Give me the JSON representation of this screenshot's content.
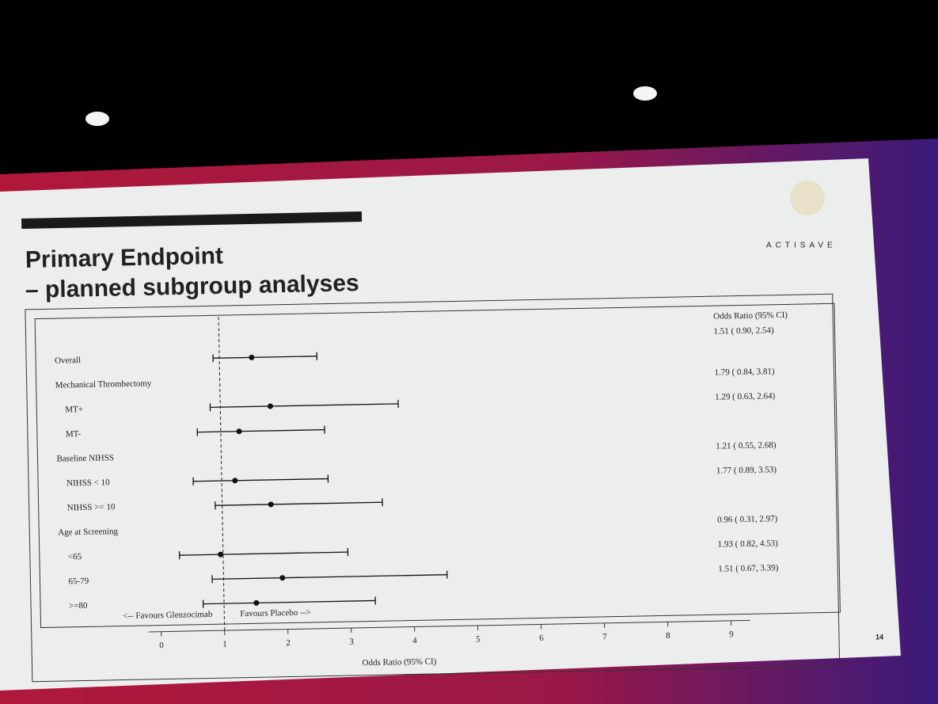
{
  "chart_data": {
    "type": "forest",
    "title": "Primary Endpoint",
    "subtitle": "– planned subgroup analyses",
    "logo": "ACTISAVE",
    "page_number": "14",
    "ci_header": "Odds Ratio (95% CI)",
    "x_label": "Odds Ratio (95% CI)",
    "left_note": "<-- Favours Glenzocimab",
    "right_note": "Favours Placebo -->",
    "categories": [
      "Overall",
      "Mechanical Thrombectomy",
      "MT+",
      "MT-",
      "Baseline NIHSS",
      "NIHSS < 10",
      "NIHSS >= 10",
      "Age at Screening",
      "<65",
      "65-79",
      ">=80"
    ],
    "values": [
      1.51,
      null,
      1.79,
      1.29,
      null,
      1.21,
      1.77,
      null,
      0.96,
      1.93,
      1.51
    ],
    "lower": [
      0.9,
      null,
      0.84,
      0.63,
      null,
      0.55,
      0.89,
      null,
      0.31,
      0.82,
      0.67
    ],
    "upper": [
      2.54,
      null,
      3.81,
      2.64,
      null,
      2.68,
      3.53,
      null,
      2.97,
      4.53,
      3.39
    ],
    "value_labels": [
      "1.51 ( 0.90,  2.54)",
      null,
      "1.79 ( 0.84,  3.81)",
      "1.29 ( 0.63,  2.64)",
      null,
      "1.21 ( 0.55,  2.68)",
      "1.77 ( 0.89,  3.53)",
      null,
      "0.96 ( 0.31,  2.97)",
      "1.93 ( 0.82,  4.53)",
      "1.51 ( 0.67,  3.39)"
    ],
    "ref_line": 1,
    "xlim": [
      -0.2,
      9.3
    ],
    "xticks": [
      0,
      1,
      2,
      3,
      4,
      5,
      6,
      7,
      8,
      9
    ],
    "color": "#111111"
  }
}
